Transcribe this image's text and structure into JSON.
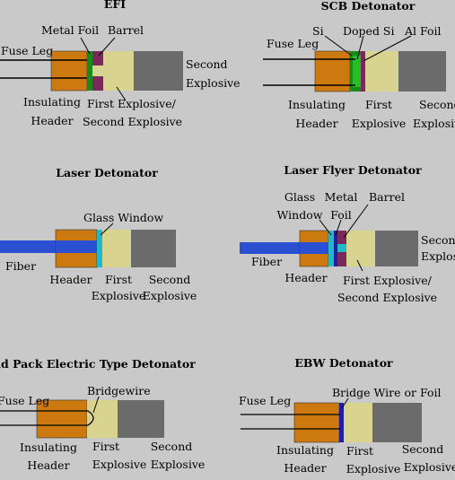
{
  "colors": {
    "background": "#c9c9c9",
    "header": "#cc7a10",
    "first_explosive": "#d8d38f",
    "second_explosive": "#6b6b6b",
    "metal_foil": "#1a8a1a",
    "barrel": "#7a2a5a",
    "doped_si": "#22c022",
    "fiber": "#2a4fd0",
    "glass": "#22b8c8",
    "bridge_wire": "#1f1fa0",
    "wire": "#000000"
  },
  "efi": {
    "title": "EFI",
    "fuse_leg": "Fuse Leg",
    "metal_foil": "Metal Foil",
    "barrel": "Barrel",
    "second_explosive_1": "Second",
    "second_explosive_2": "Explosive",
    "insulating": "Insulating",
    "header": "Header",
    "first_second_1": "First Explosive/",
    "first_second_2": "Second Explosive"
  },
  "scb": {
    "title": "SCB Detonator",
    "si": "Si",
    "doped_si": "Doped Si",
    "al_foil": "Al Foil",
    "fuse_leg": "Fuse Leg",
    "insulating": "Insulating",
    "header": "Header",
    "first": "First",
    "explosive": "Explosive",
    "second": "Second",
    "second_explosive": "Explosive"
  },
  "laser": {
    "title": "Laser Detonator",
    "glass_window": "Glass Window",
    "fiber": "Fiber",
    "header": "Header",
    "first": "First",
    "first_explosive": "Explosive",
    "second": "Second",
    "second_explosive": "Explosive"
  },
  "flyer": {
    "title": "Laser Flyer Detonator",
    "glass": "Glass",
    "window": "Window",
    "metal": "Metal",
    "foil": "Foil",
    "barrel": "Barrel",
    "fiber": "Fiber",
    "header": "Header",
    "second": "Second",
    "second_explosive": "Explosive",
    "first_second_1": "First Explosive/",
    "first_second_2": "Second Explosive"
  },
  "solid": {
    "title": "Solid Pack Electric Type Detonator",
    "fuse_leg": "Fuse Leg",
    "bridgewire": "Bridgewire",
    "insulating": "Insulating",
    "header": "Header",
    "first": "First",
    "first_explosive": "Explosive",
    "second": "Second",
    "second_explosive": "Explosive"
  },
  "ebw": {
    "title": "EBW Detonator",
    "fuse_leg": "Fuse Leg",
    "bridge_wire_foil": "Bridge Wire or Foil",
    "insulating": "Insulating",
    "header": "Header",
    "first": "First",
    "first_explosive": "Explosive",
    "second": "Second",
    "second_explosive": "Explosive"
  }
}
